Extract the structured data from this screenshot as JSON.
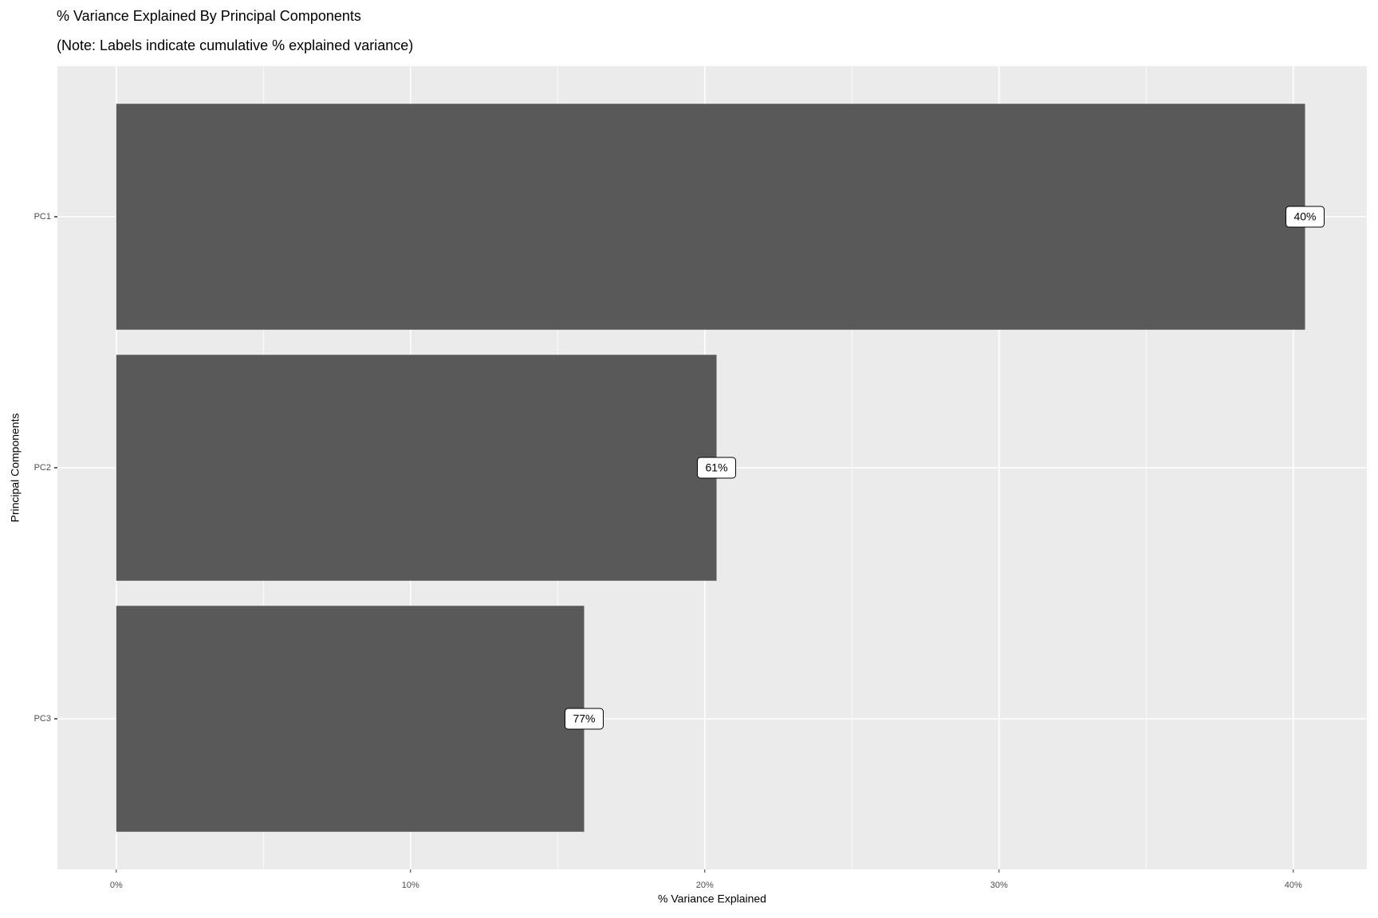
{
  "chart_data": {
    "type": "bar",
    "orientation": "horizontal",
    "title": "% Variance Explained By Principal Components",
    "subtitle": "(Note: Labels indicate cumulative % explained variance)",
    "x_label": "% Variance Explained",
    "y_label": "Principal Components",
    "categories": [
      "PC1",
      "PC2",
      "PC3"
    ],
    "values": [
      40.4,
      20.4,
      15.9
    ],
    "color": "#595959",
    "cumulative": {
      "values": [
        40.4,
        60.8,
        76.7
      ],
      "value_labels": [
        "40%",
        "61%",
        "77%"
      ]
    },
    "xlim": [
      -2,
      42.5
    ],
    "xticks": [
      {
        "value": 0,
        "label": "0%"
      },
      {
        "value": 10,
        "label": "10%"
      },
      {
        "value": 20,
        "label": "20%"
      },
      {
        "value": 30,
        "label": "30%"
      },
      {
        "value": 40,
        "label": "40%"
      }
    ],
    "minor_xticks": [
      5,
      15,
      25,
      35
    ],
    "grid": true
  }
}
